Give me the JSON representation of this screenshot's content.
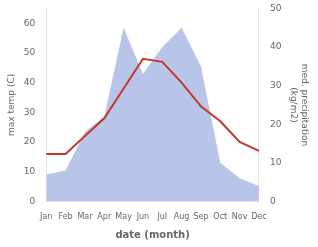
{
  "chart_data": {
    "type": "line",
    "xlabel": "date (month)",
    "ylabel": "max temp (C)",
    "y2label": "med. precipitation\n(kg/m2)",
    "categories": [
      "Jan",
      "Feb",
      "Mar",
      "Apr",
      "May",
      "Jun",
      "Jul",
      "Aug",
      "Sep",
      "Oct",
      "Nov",
      "Dec"
    ],
    "series": [
      {
        "type": "line",
        "color": "#c0392b",
        "values": [
          16,
          16,
          22,
          28,
          38,
          48,
          47,
          40,
          32,
          27,
          20,
          17
        ]
      },
      {
        "type": "area",
        "color": "#b8c4e8",
        "axis": "y2",
        "values": [
          7,
          8,
          18,
          22,
          45,
          33,
          40,
          45,
          35,
          10,
          6,
          4
        ]
      }
    ],
    "ylim": [
      0,
      65
    ],
    "yticks": [
      0,
      10,
      20,
      30,
      40,
      50,
      60
    ],
    "y2lim": [
      0,
      50
    ],
    "y2ticks": [
      0,
      10,
      20,
      30,
      40,
      50
    ],
    "grid": false
  }
}
